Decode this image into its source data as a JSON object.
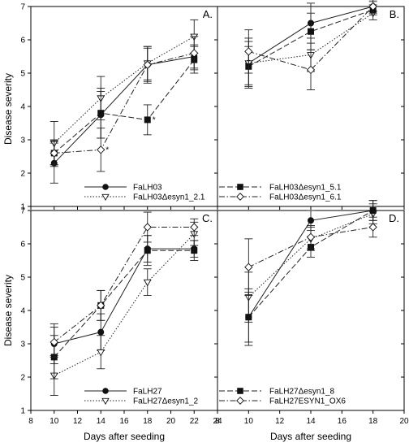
{
  "figure": {
    "ylabel": "Disease severity",
    "xlabel_left": "Days after seeding",
    "xlabel_right": "Days after seeding"
  },
  "chart_data": [
    {
      "type": "line",
      "panel": "A.",
      "x": [
        10,
        14,
        18,
        22
      ],
      "xlim": [
        8,
        24
      ],
      "ylim": [
        1,
        7
      ],
      "xticks": [
        8,
        10,
        12,
        14,
        16,
        18,
        20,
        22,
        24
      ],
      "yticks": [
        1,
        2,
        3,
        4,
        5,
        6,
        7
      ],
      "show_xticks": false,
      "legend_columns": [
        [
          "FaLH03",
          "FaLH03Δesyn1_2.1"
        ],
        [
          "FaLH03Δesyn1_5.1",
          "FaLH03Δesyn1_6.1"
        ]
      ],
      "annotations": [
        {
          "text": "*",
          "x": 18,
          "y": 3.6
        },
        {
          "text": "*",
          "x": 14,
          "y": 2.7
        }
      ],
      "series": [
        {
          "name": "FaLH03",
          "marker": "circle",
          "dash": "solid",
          "values": [
            2.3,
            3.75,
            5.25,
            5.5
          ],
          "err": [
            0.6,
            0.7,
            0.5,
            0.35
          ]
        },
        {
          "name": "FaLH03Δesyn1_2.1",
          "marker": "tri-down",
          "dash": "dot",
          "values": [
            2.9,
            4.25,
            5.3,
            6.1
          ],
          "err": [
            0.65,
            0.65,
            0.5,
            0.5
          ]
        },
        {
          "name": "FaLH03Δesyn1_5.1",
          "marker": "square",
          "dash": "dash",
          "values": [
            2.6,
            3.8,
            3.6,
            5.4
          ],
          "err": [
            0.4,
            0.75,
            0.45,
            0.4
          ]
        },
        {
          "name": "FaLH03Δesyn1_6.1",
          "marker": "diamond",
          "dash": "dashdot",
          "values": [
            2.6,
            2.7,
            5.25,
            5.6
          ],
          "err": [
            0.35,
            0.65,
            0.55,
            0.5
          ]
        }
      ]
    },
    {
      "type": "line",
      "panel": "B.",
      "x": [
        10,
        14,
        18
      ],
      "xlim": [
        8,
        20
      ],
      "ylim": [
        1,
        7
      ],
      "xticks": [
        8,
        10,
        12,
        14,
        16,
        18,
        20
      ],
      "yticks": [
        1,
        2,
        3,
        4,
        5,
        6,
        7
      ],
      "show_xticks": false,
      "series": [
        {
          "name": "FaLH03",
          "marker": "circle",
          "dash": "solid",
          "values": [
            5.3,
            6.5,
            7.0
          ],
          "err": [
            0.75,
            0.6,
            0.15
          ]
        },
        {
          "name": "FaLH03Δesyn1_2.1",
          "marker": "tri-down",
          "dash": "dot",
          "values": [
            5.3,
            5.55,
            6.8
          ],
          "err": [
            0.65,
            0.5,
            0.2
          ]
        },
        {
          "name": "FaLH03Δesyn1_5.1",
          "marker": "square",
          "dash": "dash",
          "values": [
            5.2,
            6.25,
            6.9
          ],
          "err": [
            0.6,
            0.55,
            0.15
          ]
        },
        {
          "name": "FaLH03Δesyn1_6.1",
          "marker": "diamond",
          "dash": "dashdot",
          "values": [
            5.65,
            5.1,
            7.0
          ],
          "err": [
            0.65,
            0.6,
            0.2
          ]
        }
      ]
    },
    {
      "type": "line",
      "panel": "C.",
      "x": [
        10,
        14,
        18,
        22
      ],
      "xlim": [
        8,
        24
      ],
      "ylim": [
        1,
        7
      ],
      "xticks": [
        8,
        10,
        12,
        14,
        16,
        18,
        20,
        22,
        24
      ],
      "yticks": [
        1,
        2,
        3,
        4,
        5,
        6,
        7
      ],
      "show_xticks": true,
      "legend_columns": [
        [
          "FaLH27",
          "FaLH27Δesyn1_2"
        ],
        [
          "FaLH27Δesyn1_8",
          "FaLH27ESYN1_OX6"
        ]
      ],
      "series": [
        {
          "name": "FaLH27",
          "marker": "circle",
          "dash": "solid",
          "values": [
            3.0,
            3.35,
            5.85,
            5.85
          ],
          "err": [
            0.6,
            0.55,
            0.4,
            0.25
          ]
        },
        {
          "name": "FaLH27Δesyn1_2",
          "marker": "tri-down",
          "dash": "dot",
          "values": [
            2.05,
            2.75,
            4.85,
            6.3
          ],
          "err": [
            0.6,
            0.5,
            0.4,
            0.35
          ]
        },
        {
          "name": "FaLH27Δesyn1_8",
          "marker": "square",
          "dash": "dash",
          "values": [
            2.6,
            4.15,
            5.8,
            5.8
          ],
          "err": [
            0.65,
            0.45,
            0.45,
            0.3
          ]
        },
        {
          "name": "FaLH27ESYN1_OX6",
          "marker": "diamond",
          "dash": "dashdot",
          "values": [
            3.05,
            4.15,
            6.5,
            6.5
          ],
          "err": [
            0.45,
            0.45,
            0.45,
            0.25
          ]
        }
      ]
    },
    {
      "type": "line",
      "panel": "D.",
      "x": [
        10,
        14,
        18
      ],
      "xlim": [
        8,
        20
      ],
      "ylim": [
        1,
        7
      ],
      "xticks": [
        8,
        10,
        12,
        14,
        16,
        18,
        20
      ],
      "yticks": [
        1,
        2,
        3,
        4,
        5,
        6,
        7
      ],
      "show_xticks": true,
      "series": [
        {
          "name": "FaLH27",
          "marker": "circle",
          "dash": "solid",
          "values": [
            3.8,
            6.7,
            7.0
          ],
          "err": [
            0.85,
            0.3,
            0.3
          ]
        },
        {
          "name": "FaLH27Δesyn1_2",
          "marker": "tri-down",
          "dash": "dot",
          "values": [
            4.4,
            6.15,
            6.9
          ],
          "err": [
            0.75,
            0.35,
            0.3
          ]
        },
        {
          "name": "FaLH27Δesyn1_8",
          "marker": "square",
          "dash": "dash",
          "values": [
            3.8,
            5.9,
            7.0
          ],
          "err": [
            0.75,
            0.3,
            0.3
          ]
        },
        {
          "name": "FaLH27ESYN1_OX6",
          "marker": "diamond",
          "dash": "dashdot",
          "values": [
            5.3,
            6.2,
            6.5
          ],
          "err": [
            0.85,
            0.35,
            0.3
          ]
        }
      ]
    }
  ]
}
